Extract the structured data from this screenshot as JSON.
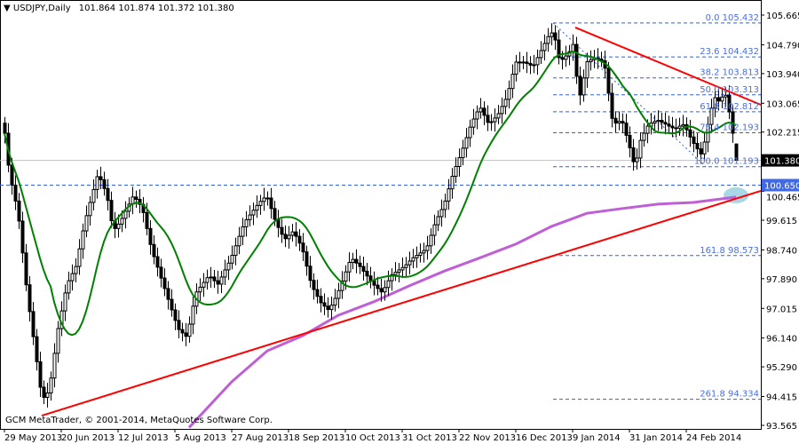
{
  "header": {
    "symbol": "USDJPY,Daily",
    "ohlc": "101.864 101.874 101.372 101.380",
    "menu_icon": "triangle-down-icon"
  },
  "copyright": "GCM MetaTrader, © 2001-2014, MetaQuotes Software Corp.",
  "colors": {
    "ma_fast": "#008000",
    "ma_slow": "#bf5fd6",
    "trendline": "#ff0000",
    "fibo": "#3060e0",
    "bid_box": "#000000",
    "level_box": "#4169e1",
    "highlight": "#a8d8e8"
  },
  "chart_data": {
    "type": "candlestick",
    "symbol": "USDJPY",
    "timeframe": "Daily",
    "ylim": [
      93.2,
      105.95
    ],
    "y_ticks": [
      "105.665",
      "104.790",
      "103.940",
      "103.065",
      "102.215",
      "101.380",
      "100.465",
      "99.615",
      "98.740",
      "97.890",
      "97.015",
      "96.140",
      "95.290",
      "94.415",
      "93.565"
    ],
    "x_labels": [
      "29 May 2013",
      "20 Jun 2013",
      "12 Jul 2013",
      "5 Aug 2013",
      "27 Aug 2013",
      "18 Sep 2013",
      "10 Oct 2013",
      "31 Oct 2013",
      "22 Nov 2013",
      "16 Dec 2013",
      "9 Jan 2014",
      "31 Jan 2014",
      "24 Feb 2014"
    ],
    "x_label_every_bars": 16,
    "last_bar": {
      "open": 101.864,
      "high": 101.874,
      "low": 101.372,
      "close": 101.38
    },
    "closes": [
      102.18,
      101.24,
      100.65,
      100.18,
      99.59,
      98.65,
      97.71,
      96.92,
      96.18,
      95.44,
      94.69,
      94.39,
      94.52,
      94.96,
      95.69,
      96.42,
      96.94,
      97.47,
      97.83,
      98.04,
      98.25,
      98.77,
      99.3,
      99.75,
      100.14,
      100.52,
      100.9,
      100.81,
      100.55,
      100.2,
      99.6,
      99.37,
      99.5,
      99.67,
      99.88,
      100.09,
      100.3,
      100.23,
      100.08,
      99.84,
      99.37,
      98.9,
      98.54,
      98.23,
      97.91,
      97.6,
      97.28,
      96.97,
      96.66,
      96.39,
      96.29,
      96.19,
      96.55,
      97.08,
      97.5,
      97.64,
      97.78,
      97.92,
      97.94,
      97.83,
      97.73,
      97.94,
      98.15,
      98.35,
      98.58,
      98.86,
      99.14,
      99.42,
      99.63,
      99.77,
      99.91,
      100.05,
      100.17,
      100.27,
      100.27,
      99.96,
      99.64,
      99.4,
      99.2,
      99.07,
      99.17,
      99.27,
      99.14,
      98.94,
      98.68,
      98.26,
      97.84,
      97.57,
      97.37,
      97.18,
      97.08,
      96.98,
      97.11,
      97.31,
      97.54,
      97.82,
      98.09,
      98.37,
      98.46,
      98.35,
      98.25,
      98.11,
      97.97,
      97.83,
      97.7,
      97.6,
      97.5,
      97.63,
      97.83,
      98.01,
      98.08,
      98.15,
      98.22,
      98.3,
      98.41,
      98.51,
      98.58,
      98.65,
      98.72,
      98.86,
      99.17,
      99.48,
      99.72,
      99.93,
      100.18,
      100.54,
      100.91,
      101.2,
      101.46,
      101.74,
      102.05,
      102.36,
      102.6,
      102.81,
      102.92,
      102.71,
      102.5,
      102.52,
      102.63,
      102.76,
      102.97,
      103.18,
      103.5,
      103.92,
      104.28,
      104.28,
      104.28,
      104.24,
      104.19,
      104.2,
      104.41,
      104.62,
      104.83,
      105.03,
      105.14,
      104.93,
      104.41,
      104.36,
      104.46,
      104.59,
      104.8,
      103.86,
      103.31,
      103.81,
      104.29,
      104.35,
      104.4,
      104.37,
      104.32,
      104.1,
      103.36,
      102.62,
      102.48,
      102.53,
      102.48,
      102.12,
      101.75,
      101.34,
      101.45,
      101.97,
      102.18,
      102.39,
      102.48,
      102.53,
      102.56,
      102.5,
      102.45,
      102.39,
      102.34,
      102.33,
      102.39,
      102.43,
      102.28,
      102.07,
      101.88,
      101.72,
      101.57,
      101.92,
      102.44,
      102.92,
      103.23,
      103.13,
      103.25,
      103.3,
      102.81,
      102.18,
      101.38
    ],
    "ma_fast_period": 14,
    "ma_slow_points": [
      [
        52,
        93.5
      ],
      [
        64,
        94.85
      ],
      [
        74,
        95.76
      ],
      [
        84,
        96.21
      ],
      [
        94,
        96.81
      ],
      [
        104,
        97.21
      ],
      [
        114,
        97.68
      ],
      [
        124,
        98.12
      ],
      [
        134,
        98.51
      ],
      [
        144,
        98.91
      ],
      [
        154,
        99.43
      ],
      [
        164,
        99.82
      ],
      [
        174,
        99.96
      ],
      [
        184,
        100.09
      ],
      [
        194,
        100.14
      ],
      [
        206,
        100.3
      ]
    ],
    "trendlines": [
      {
        "from": [
          10.5,
          93.85
        ],
        "to": [
          213,
          100.48
        ]
      },
      {
        "from": [
          160.75,
          105.3
        ],
        "to": [
          213,
          103.02
        ]
      }
    ],
    "bid_line": {
      "price": 101.38,
      "label": "101.380"
    },
    "horizontal_level": {
      "price": 100.65,
      "label": "100.650"
    },
    "fibonacci": {
      "from_bar": 154.5,
      "to_bar": 197.5,
      "levels": [
        {
          "label": "0.0 105.432",
          "price": 105.432
        },
        {
          "label": "23.6 104.432",
          "price": 104.432
        },
        {
          "label": "38.2 103.813",
          "price": 103.813
        },
        {
          "label": "50.0 103.313",
          "price": 103.313
        },
        {
          "label": "61.8 102.812",
          "price": 102.812
        },
        {
          "label": "76.4 102.193",
          "price": 102.193
        },
        {
          "label": "100.0 101.193",
          "price": 101.193
        },
        {
          "label": "161.8 98.573",
          "price": 98.573
        },
        {
          "label": "261.8 94.334",
          "price": 94.334
        }
      ]
    },
    "highlight": {
      "bar": 206,
      "price": 100.35
    }
  }
}
